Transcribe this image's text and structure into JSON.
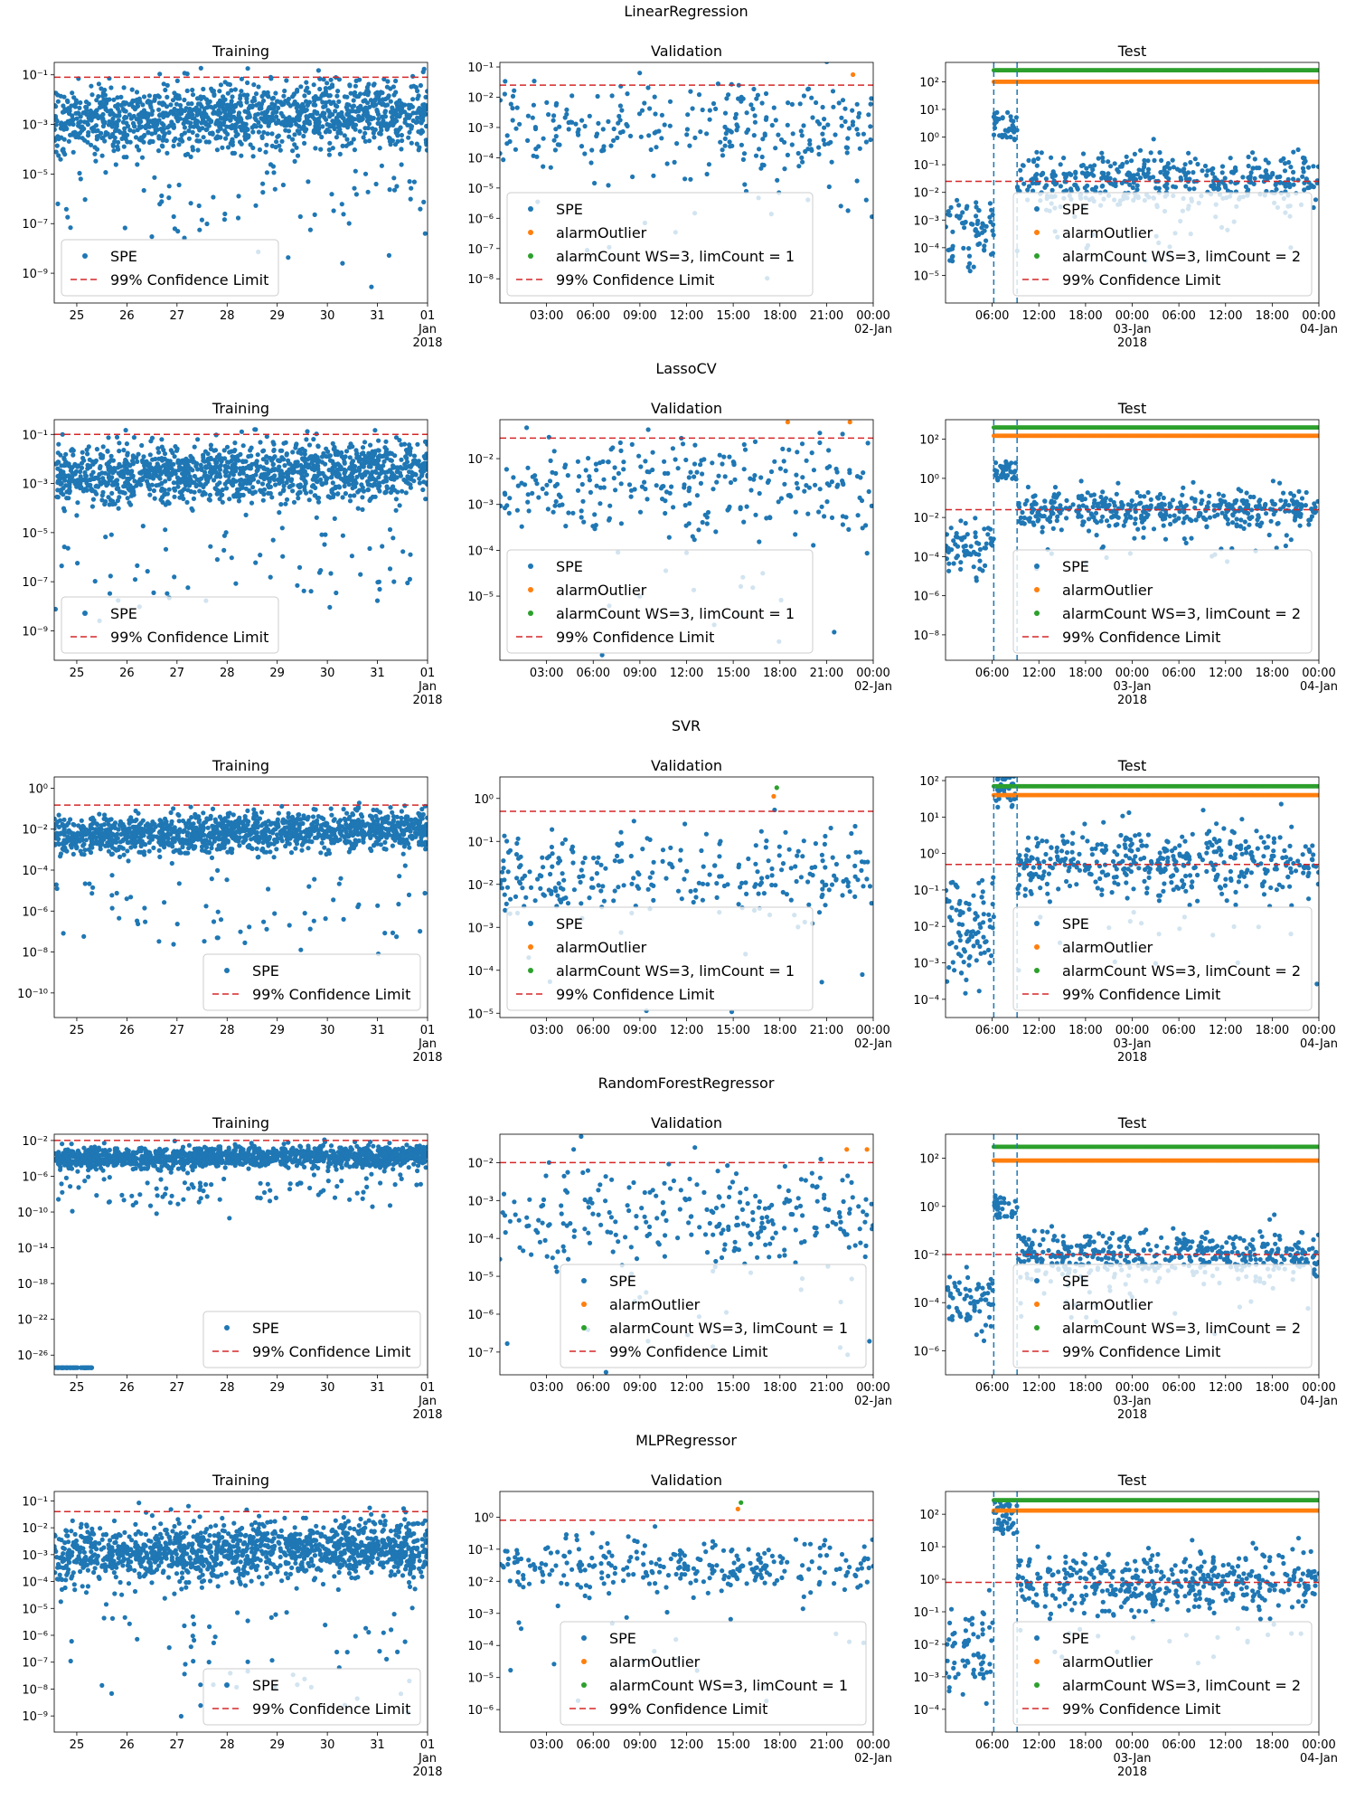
{
  "colors": {
    "spe": "#1f77b4",
    "alarm_outlier": "#ff7f0e",
    "alarm_count": "#2ca02c",
    "limit": "#d62728",
    "window_line": "#1f77b4"
  },
  "legend_labels": {
    "spe": "SPE",
    "alarm_outlier": "alarmOutlier",
    "alarm_count_val": "alarmCount WS=3, limCount = 1",
    "alarm_count_test": "alarmCount WS=3, limCount = 2",
    "limit": "99% Confidence Limit"
  },
  "panel_titles": [
    "Training",
    "Validation",
    "Test"
  ],
  "axes": {
    "training": {
      "ticks": [
        {
          "label": "25",
          "sub": "",
          "sub2": ""
        },
        {
          "label": "26",
          "sub": "",
          "sub2": ""
        },
        {
          "label": "27",
          "sub": "",
          "sub2": ""
        },
        {
          "label": "28",
          "sub": "",
          "sub2": ""
        },
        {
          "label": "29",
          "sub": "",
          "sub2": ""
        },
        {
          "label": "30",
          "sub": "",
          "sub2": ""
        },
        {
          "label": "31",
          "sub": "",
          "sub2": ""
        },
        {
          "label": "01",
          "sub": "Jan",
          "sub2": "2018"
        }
      ],
      "range_days": [
        -0.45,
        7.0
      ]
    },
    "validation": {
      "ticks": [
        {
          "label": "03:00",
          "sub": ""
        },
        {
          "label": "06:00",
          "sub": ""
        },
        {
          "label": "09:00",
          "sub": ""
        },
        {
          "label": "12:00",
          "sub": ""
        },
        {
          "label": "15:00",
          "sub": ""
        },
        {
          "label": "18:00",
          "sub": ""
        },
        {
          "label": "21:00",
          "sub": ""
        },
        {
          "label": "00:00",
          "sub": "02-Jan"
        }
      ],
      "range_hours": [
        0,
        24
      ]
    },
    "test": {
      "ticks": [
        {
          "label": "06:00",
          "sub": "",
          "sub2": ""
        },
        {
          "label": "12:00",
          "sub": "",
          "sub2": ""
        },
        {
          "label": "18:00",
          "sub": "",
          "sub2": ""
        },
        {
          "label": "00:00",
          "sub": "03-Jan",
          "sub2": "2018"
        },
        {
          "label": "06:00",
          "sub": "",
          "sub2": ""
        },
        {
          "label": "12:00",
          "sub": "",
          "sub2": ""
        },
        {
          "label": "18:00",
          "sub": "",
          "sub2": ""
        },
        {
          "label": "00:00",
          "sub": "04-Jan",
          "sub2": ""
        }
      ],
      "range_hours": [
        0,
        48
      ]
    }
  },
  "chart_data": [
    {
      "type": "scatter",
      "title": "LinearRegression",
      "yscale": "log",
      "training": {
        "ylim_log10": [
          -10.2,
          -0.5
        ],
        "yticks_log10": [
          -9,
          -7,
          -5,
          -3,
          -1
        ],
        "limit": 0.08,
        "center_log10": -2.8,
        "spread": 1.1,
        "trend": 0.3
      },
      "validation": {
        "ylim_log10": [
          -8.8,
          -0.85
        ],
        "yticks_log10": [
          -8,
          -7,
          -6,
          -5,
          -4,
          -3,
          -2,
          -1
        ],
        "limit": 0.025,
        "center_log10": -3.0,
        "spread": 1.1,
        "outlier_hours": [
          22.7
        ],
        "count_hours": []
      },
      "test": {
        "ylim_log10": [
          -6.0,
          2.7
        ],
        "yticks_log10": [
          -5,
          -4,
          -3,
          -2,
          -1,
          0,
          1,
          2
        ],
        "limit": 0.025,
        "outlier_value": 100,
        "count_value": 260,
        "window_start_hours": 6.2,
        "window_end_hours": 9.2
      }
    },
    {
      "type": "scatter",
      "title": "LassoCV",
      "yscale": "log",
      "training": {
        "ylim_log10": [
          -10.2,
          -0.4
        ],
        "yticks_log10": [
          -9,
          -7,
          -5,
          -3,
          -1
        ],
        "limit": 0.1,
        "center_log10": -2.7,
        "spread": 1.0,
        "trend": 0.3
      },
      "validation": {
        "ylim_log10": [
          -6.4,
          -1.15
        ],
        "yticks_log10": [
          -5,
          -4,
          -3,
          -2
        ],
        "limit": 0.028,
        "center_log10": -2.6,
        "spread": 0.8,
        "outlier_hours": [
          18.5,
          22.5
        ],
        "count_hours": []
      },
      "test": {
        "ylim_log10": [
          -9.3,
          3.0
        ],
        "yticks_log10": [
          -8,
          -6,
          -4,
          -2,
          0,
          2
        ],
        "limit": 0.025,
        "outlier_value": 150,
        "count_value": 400,
        "window_start_hours": 6.2,
        "window_end_hours": 9.2
      }
    },
    {
      "type": "scatter",
      "title": "SVR",
      "yscale": "log",
      "training": {
        "ylim_log10": [
          -11.2,
          0.55
        ],
        "yticks_log10": [
          -10,
          -8,
          -6,
          -4,
          -2,
          0
        ],
        "limit": 0.15,
        "center_log10": -2.3,
        "spread": 0.8,
        "trend": 0.3
      },
      "validation": {
        "ylim_log10": [
          -5.1,
          0.5
        ],
        "yticks_log10": [
          -5,
          -4,
          -3,
          -2,
          -1,
          0
        ],
        "limit": 0.5,
        "center_log10": -1.8,
        "spread": 0.7,
        "outlier_hours": [
          17.6
        ],
        "count_hours": [
          17.8
        ]
      },
      "test": {
        "ylim_log10": [
          -4.5,
          2.1
        ],
        "yticks_log10": [
          -4,
          -3,
          -2,
          -1,
          0,
          1,
          2
        ],
        "limit": 0.5,
        "outlier_value": 40,
        "count_value": 70,
        "window_start_hours": 6.2,
        "window_end_hours": 9.2
      }
    },
    {
      "type": "scatter",
      "title": "RandomForestRegressor",
      "yscale": "log",
      "training": {
        "ylim_log10": [
          -28.2,
          -1.3
        ],
        "yticks_log10": [
          -26,
          -22,
          -18,
          -14,
          -10,
          -6,
          -2
        ],
        "limit": 0.01,
        "center_log10": -4.0,
        "spread": 1.0,
        "trend": 0.3,
        "floor_log10": -27.4
      },
      "validation": {
        "ylim_log10": [
          -7.6,
          -1.25
        ],
        "yticks_log10": [
          -7,
          -6,
          -5,
          -4,
          -3,
          -2
        ],
        "limit": 0.01,
        "center_log10": -3.5,
        "spread": 1.0,
        "outlier_hours": [
          22.3,
          23.6
        ],
        "count_hours": []
      },
      "test": {
        "ylim_log10": [
          -7.0,
          3.0
        ],
        "yticks_log10": [
          -6,
          -4,
          -2,
          0,
          2
        ],
        "limit": 0.01,
        "outlier_value": 80,
        "count_value": 300,
        "window_start_hours": 6.2,
        "window_end_hours": 9.2
      }
    },
    {
      "type": "scatter",
      "title": "MLPRegressor",
      "yscale": "log",
      "training": {
        "ylim_log10": [
          -9.6,
          -0.65
        ],
        "yticks_log10": [
          -9,
          -8,
          -7,
          -6,
          -5,
          -4,
          -3,
          -2,
          -1
        ],
        "limit": 0.04,
        "center_log10": -3.0,
        "spread": 0.9,
        "trend": 0.3
      },
      "validation": {
        "ylim_log10": [
          -6.7,
          0.8
        ],
        "yticks_log10": [
          -6,
          -5,
          -4,
          -3,
          -2,
          -1,
          0
        ],
        "limit": 0.8,
        "center_log10": -1.5,
        "spread": 0.6,
        "outlier_hours": [
          15.3
        ],
        "count_hours": [
          15.5
        ]
      },
      "test": {
        "ylim_log10": [
          -4.7,
          2.7
        ],
        "yticks_log10": [
          -4,
          -3,
          -2,
          -1,
          0,
          1,
          2
        ],
        "limit": 0.8,
        "outlier_value": 130,
        "count_value": 270,
        "window_start_hours": 6.2,
        "window_end_hours": 9.2
      }
    }
  ]
}
